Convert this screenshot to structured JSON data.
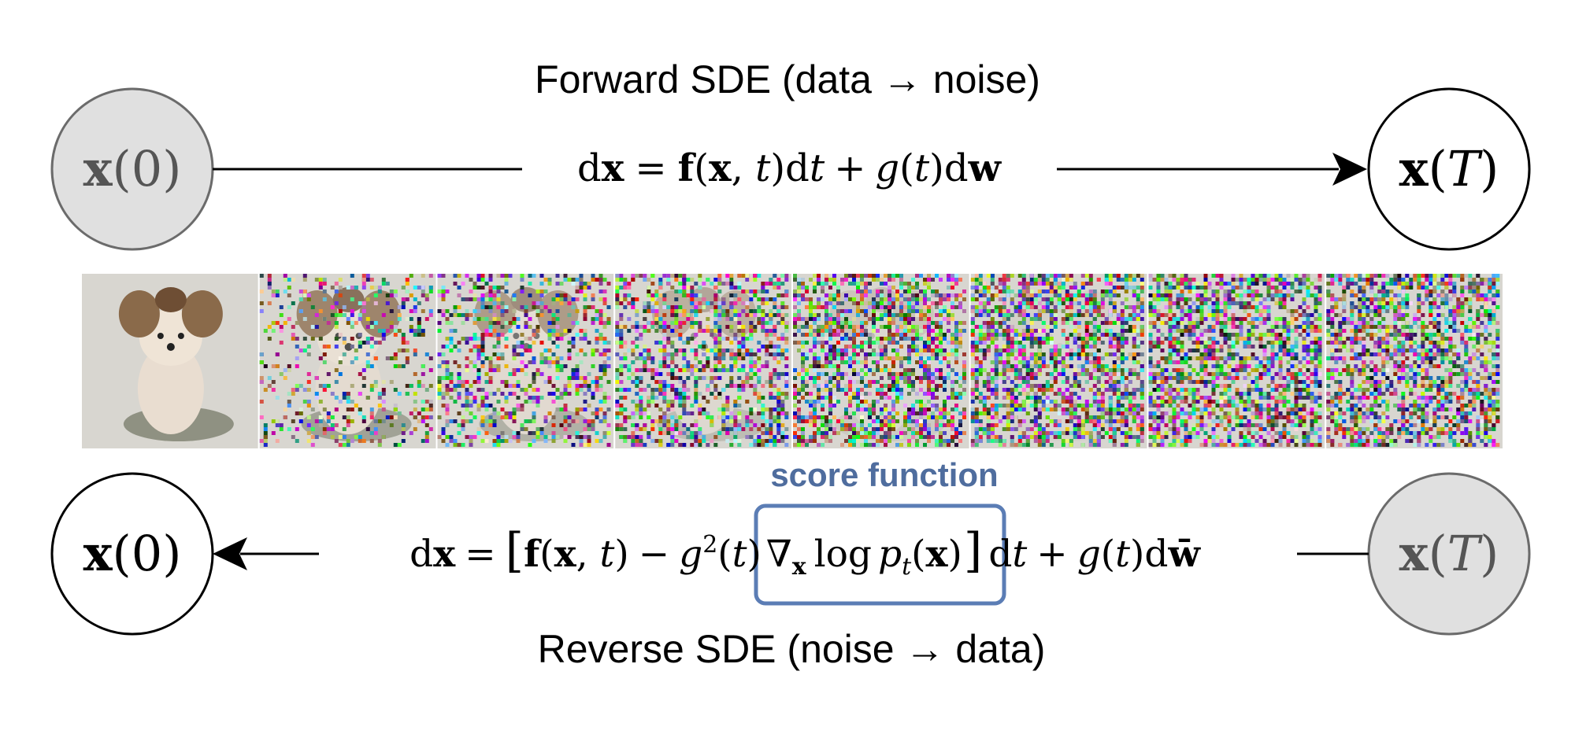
{
  "forward": {
    "title": "Forward SDE (data → noise)",
    "equation": {
      "d1": "d",
      "x1": "x",
      "eq": "=",
      "f": "f",
      "open": "(",
      "x2": "x",
      "comma": ", ",
      "t": "t",
      "close": ")",
      "d2": "d",
      "t2": "t",
      "plus": "+",
      "g": "g",
      "open2": "(",
      "t3": "t",
      "close2": ")",
      "d3": "d",
      "w": "w"
    },
    "start_node": {
      "x": "x",
      "arg": "0"
    },
    "end_node": {
      "x": "x",
      "arg": "T"
    }
  },
  "reverse": {
    "title": "Reverse SDE (noise → data)",
    "score_label": "score function",
    "equation": {
      "d1": "d",
      "x1": "x",
      "eq": "=",
      "lbr": "[",
      "f": "f",
      "open": "(",
      "x2": "x",
      "comma": ", ",
      "t": "t",
      "close": ")",
      "minus": "−",
      "g": "g",
      "sup": "2",
      "open2": "(",
      "t2": "t",
      "close2": ")",
      "nabla": "∇",
      "sub_x": "x",
      "log": "log",
      "p": "p",
      "sub_t": "t",
      "open3": "(",
      "x3": "x",
      "close3": ")",
      "rbr": "]",
      "d2": "d",
      "t3": "t",
      "plus": "+",
      "g2": "g",
      "open4": "(",
      "t4": "t",
      "close4": ")",
      "d3": "d",
      "wbar": "w̄"
    },
    "start_node": {
      "x": "x",
      "arg": "T"
    },
    "end_node": {
      "x": "x",
      "arg": "0"
    }
  },
  "colors": {
    "line": "#000000",
    "filled_node": "#e0e0e0",
    "filled_node_stroke": "#6b6b6b",
    "score_box": "#5b7db5",
    "score_text": "#4f6d9e"
  },
  "noise_strip": {
    "frames": 8,
    "noise_levels": [
      0.0,
      0.25,
      0.45,
      0.62,
      0.8,
      0.9,
      0.96,
      1.0
    ]
  }
}
